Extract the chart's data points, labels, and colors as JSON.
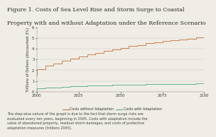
{
  "title_line1": "Figure 1. Costs of Sea Level Rise and Storm Surge to Coastal",
  "title_line2": "Property with and without Adaptation under the Reference Scenario",
  "title_fontsize": 5.8,
  "ylabel": "Trillions of Dollars (discounted 3%)",
  "ylabel_fontsize": 3.8,
  "xlim": [
    2000,
    2100
  ],
  "ylim": [
    0,
    6
  ],
  "xticks": [
    2000,
    2025,
    2050,
    2075,
    2100
  ],
  "yticks": [
    0,
    1,
    2,
    3,
    4,
    5,
    6
  ],
  "background_color": "#f0ede6",
  "plot_bg_color": "#f0ede6",
  "line_no_adapt_color": "#c87941",
  "line_adapt_color": "#5aab8f",
  "legend_labels": [
    "Costs without Adaptation",
    "Costs with Adaptation"
  ],
  "legend_fontsize": 3.5,
  "footnote": "The step-wise nature of the graph is due to the fact that storm surge risks are\nevaluated every ten years, beginning in 2005. Costs with adaptation include the\nvalue of abandoned property, residual storm damages, and costs of protective\nadaptation measures (trillions 2045).",
  "footnote_fontsize": 3.5,
  "no_adapt_x": [
    2000,
    2000,
    2005,
    2005,
    2010,
    2010,
    2015,
    2015,
    2020,
    2020,
    2025,
    2025,
    2030,
    2030,
    2035,
    2035,
    2040,
    2040,
    2045,
    2045,
    2050,
    2050,
    2055,
    2055,
    2060,
    2060,
    2065,
    2065,
    2070,
    2070,
    2075,
    2075,
    2080,
    2080,
    2085,
    2085,
    2090,
    2090,
    2095,
    2095,
    2100
  ],
  "no_adapt_y": [
    1.5,
    2.1,
    2.1,
    2.4,
    2.4,
    2.6,
    2.6,
    2.9,
    2.9,
    3.1,
    3.1,
    3.25,
    3.25,
    3.45,
    3.45,
    3.6,
    3.6,
    3.8,
    3.8,
    3.95,
    3.95,
    4.1,
    4.1,
    4.25,
    4.25,
    4.35,
    4.35,
    4.5,
    4.5,
    4.6,
    4.6,
    4.7,
    4.7,
    4.8,
    4.8,
    4.88,
    4.88,
    4.95,
    4.95,
    5.05,
    5.05
  ],
  "adapt_x": [
    2000,
    2000,
    2005,
    2005,
    2010,
    2010,
    2015,
    2015,
    2020,
    2020,
    2025,
    2025,
    2030,
    2030,
    2035,
    2035,
    2040,
    2040,
    2045,
    2045,
    2050,
    2050,
    2055,
    2055,
    2060,
    2060,
    2065,
    2065,
    2070,
    2070,
    2075,
    2075,
    2080,
    2080,
    2085,
    2085,
    2090,
    2090,
    2095,
    2095,
    2100
  ],
  "adapt_y": [
    0.12,
    0.28,
    0.28,
    0.36,
    0.36,
    0.41,
    0.41,
    0.45,
    0.45,
    0.49,
    0.49,
    0.52,
    0.52,
    0.55,
    0.55,
    0.57,
    0.57,
    0.6,
    0.6,
    0.62,
    0.62,
    0.64,
    0.64,
    0.65,
    0.65,
    0.67,
    0.67,
    0.68,
    0.68,
    0.7,
    0.7,
    0.71,
    0.71,
    0.72,
    0.72,
    0.73,
    0.73,
    0.74,
    0.74,
    0.75,
    0.75
  ]
}
